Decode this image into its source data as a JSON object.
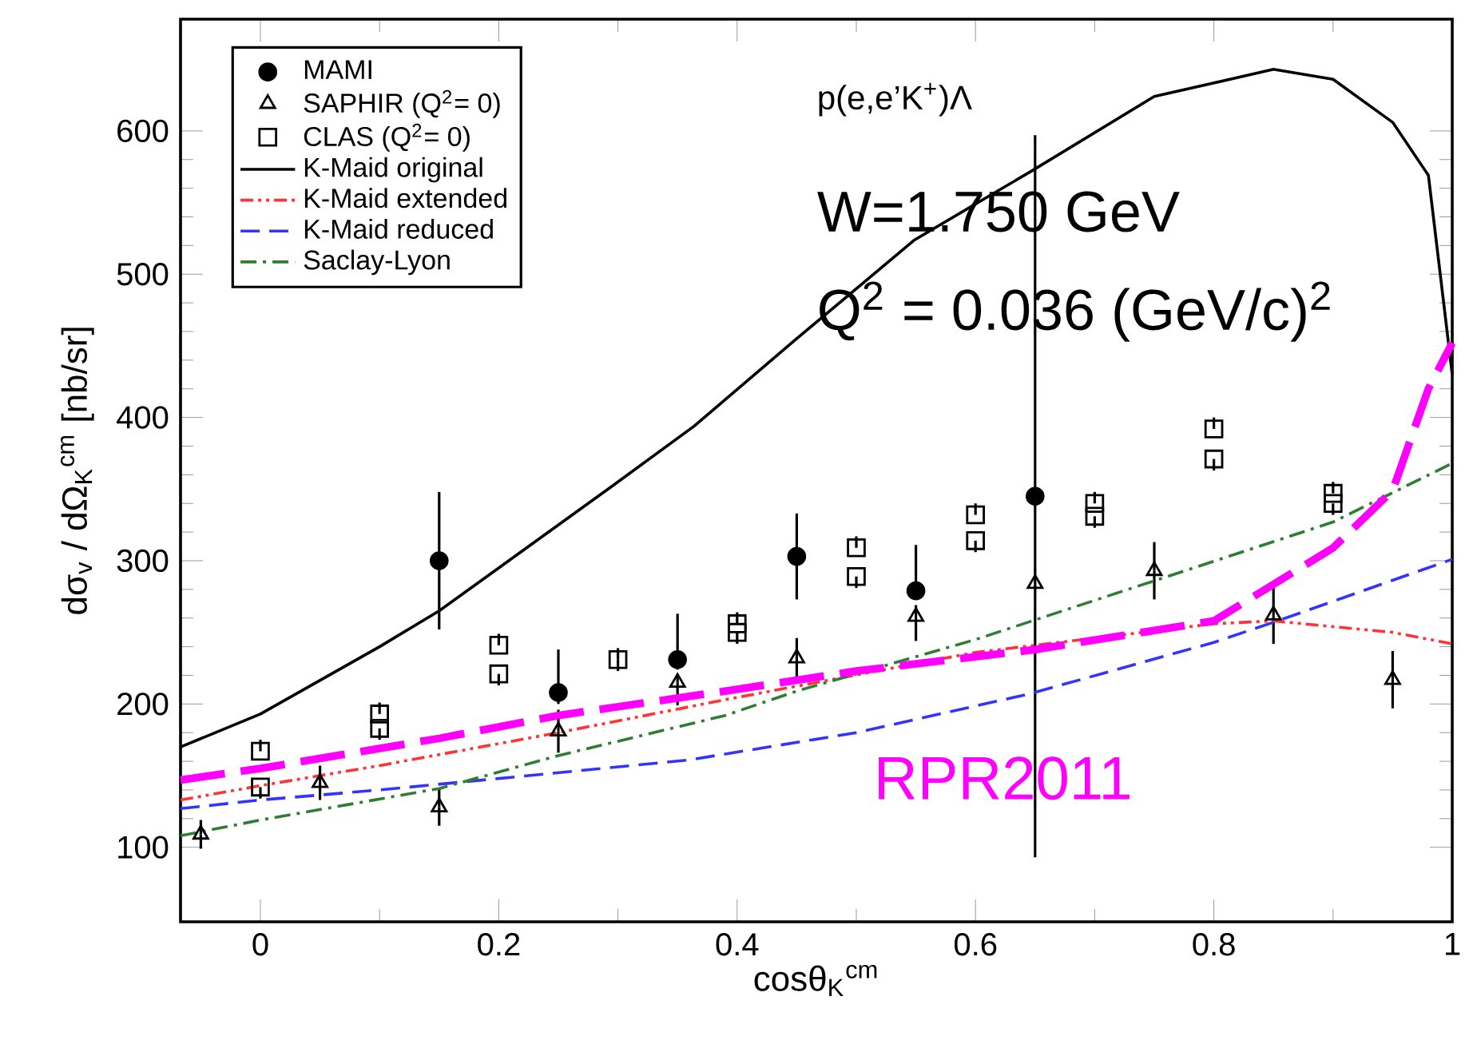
{
  "chart_data": {
    "type": "line",
    "xlabel": "cosθ$_{K}$$^{cm}$",
    "ylabel": "dσ$_{v}$ / dΩ$_{K}$$^{cm}$   [nb/sr]",
    "xlim": [
      -0.067,
      1.0
    ],
    "ylim": [
      48,
      678
    ],
    "xticks": [
      0,
      0.2,
      0.4,
      0.6,
      0.8,
      1
    ],
    "yticks": [
      100,
      200,
      300,
      400,
      500,
      600
    ],
    "legend": "top left",
    "annotations": [
      "p(e,e’K$^{+}$)Λ",
      "W=1.750 GeV",
      "Q$^{2}$ = 0.036 (GeV/c)$^{2}$",
      {
        "text": "RPR2011",
        "x": 0.65,
        "y": 238
      }
    ],
    "series": [
      {
        "name": "MAMI",
        "type": "scatter",
        "marker": "circle",
        "color": "#000000",
        "x": [
          0.15,
          0.25,
          0.35,
          0.45,
          0.55,
          0.65
        ],
        "values": [
          300,
          208,
          231,
          303,
          279,
          345
        ],
        "errors": [
          48,
          [
            200,
            238
          ],
          [
            224,
            263
          ],
          30,
          [
            273,
            311
          ],
          252
        ]
      },
      {
        "name": "SAPHIR (Q$^{2}$= 0)",
        "type": "scatter",
        "marker": "triangle",
        "color": "#000000",
        "x": [
          -0.05,
          0.05,
          0.15,
          0.25,
          0.35,
          0.45,
          0.55,
          0.65,
          0.75,
          0.85,
          0.95
        ],
        "values": [
          109,
          145,
          128,
          181,
          215,
          232,
          261,
          284,
          293,
          262,
          217
        ],
        "errors": [
          10,
          12,
          13,
          15,
          [
            199,
            220
          ],
          14,
          [
            244,
            269
          ],
          null,
          20,
          20,
          20
        ]
      },
      {
        "name": "CLAS (Q$^{2}$= 0)",
        "type": "scatter",
        "marker": "square",
        "color": "#000000",
        "x": [
          0,
          0,
          0.1,
          0.1,
          0.2,
          0.2,
          0.3,
          0.4,
          0.4,
          0.5,
          0.5,
          0.6,
          0.6,
          0.7,
          0.7,
          0.8,
          0.8,
          0.9,
          0.9
        ],
        "values": [
          167,
          142,
          193,
          183,
          241,
          221,
          231,
          256,
          250,
          309,
          289,
          332,
          314,
          340,
          331,
          392,
          371,
          347,
          340
        ],
        "errors": [
          [
            167,
            175
          ],
          [
            134,
            142
          ],
          [
            193,
            201
          ],
          [
            175,
            183
          ],
          [
            241,
            249
          ],
          [
            213,
            221
          ],
          8,
          [
            256,
            264
          ],
          [
            242,
            250
          ],
          [
            309,
            317
          ],
          [
            281,
            289
          ],
          [
            332,
            340
          ],
          [
            306,
            314
          ],
          [
            340,
            348
          ],
          [
            323,
            331
          ],
          [
            392,
            400
          ],
          [
            363,
            371
          ],
          [
            347,
            355
          ],
          [
            332,
            340
          ]
        ]
      },
      {
        "name": "K-Maid original",
        "line_style": "solid",
        "color": "#000000",
        "x": [
          -0.067,
          0,
          0.1,
          0.15,
          0.2,
          0.3,
          0.364,
          0.45,
          0.549,
          0.647,
          0.75,
          0.85,
          0.9,
          0.95,
          0.98,
          1.0
        ],
        "values": [
          170,
          193,
          240,
          265,
          295,
          355,
          394,
          455,
          524,
          572,
          624,
          643,
          636,
          606,
          569,
          430
        ]
      },
      {
        "name": "K-Maid extended",
        "line_style": "dashdotdot",
        "color": "#ff3333",
        "x": [
          -0.067,
          0,
          0.1,
          0.25,
          0.39,
          0.6,
          0.8,
          0.85,
          0.95,
          1.0
        ],
        "values": [
          133,
          143,
          157,
          180,
          203,
          236,
          256,
          258,
          250,
          242
        ]
      },
      {
        "name": "K-Maid reduced",
        "line_style": "dashed",
        "color": "#3333ff",
        "x": [
          -0.067,
          0,
          0.1,
          0.2,
          0.36,
          0.5,
          0.645,
          0.8,
          0.85,
          1.0
        ],
        "values": [
          127,
          133,
          140,
          148,
          161,
          180,
          207,
          243,
          257,
          301
        ]
      },
      {
        "name": "Saclay-Lyon",
        "line_style": "dashdot",
        "color": "#2e7d32",
        "x": [
          -0.067,
          0,
          0.15,
          0.25,
          0.39,
          0.45,
          0.6,
          0.75,
          0.9,
          1.0
        ],
        "values": [
          108,
          119,
          141,
          164,
          192,
          209,
          245,
          286,
          327,
          368
        ]
      },
      {
        "line_style": "longdashed",
        "color": "#ff00ff",
        "x": [
          -0.067,
          0,
          0.15,
          0.25,
          0.39,
          0.5,
          0.65,
          0.8,
          0.9,
          0.95,
          0.98,
          1.0
        ],
        "values": [
          147,
          155,
          176,
          192,
          209,
          223,
          238,
          258,
          309,
          349,
          420,
          452
        ]
      }
    ]
  }
}
